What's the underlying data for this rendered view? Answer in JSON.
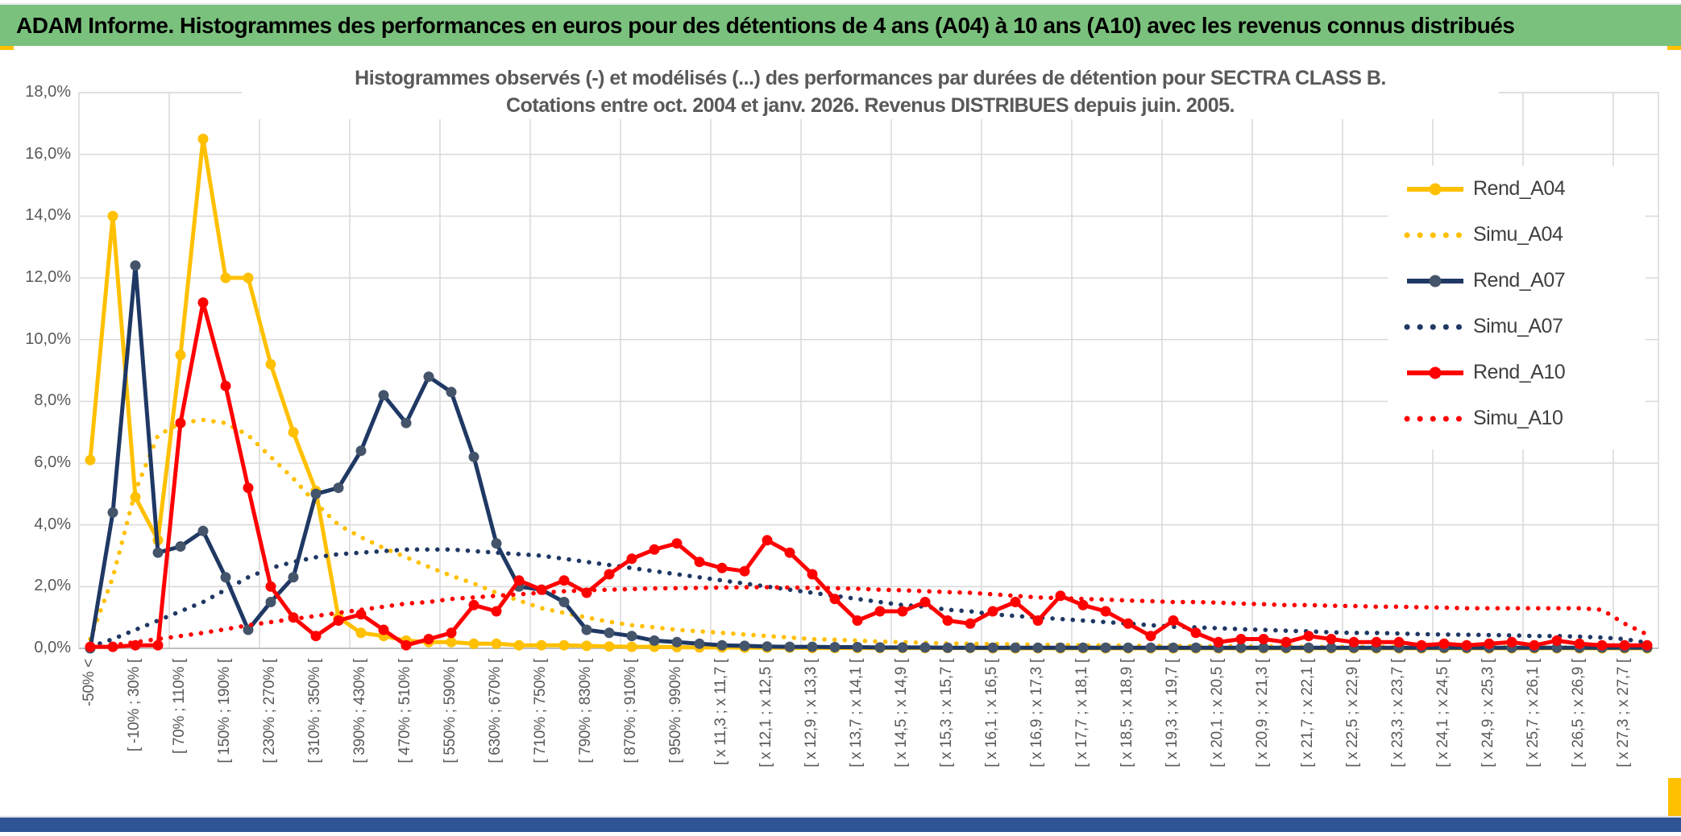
{
  "header": {
    "title": "ADAM Informe. Histogrammes des performances en euros pour des détentions de 4 ans (A04) à 10 ans (A10) avec les revenus connus distribués"
  },
  "colors": {
    "header_green": "#7ac17d",
    "accent_gold": "#ffc000",
    "bottom_blue": "#2f5597",
    "grid_gray": "#d9d9d9",
    "axis_gray": "#bfbfbf",
    "text_gray": "#595959",
    "legend_text": "#404040"
  },
  "chart_data": {
    "type": "line",
    "title_line1": "Histogrammes observés (-) et modélisés (...) des performances par durées de détention pour SECTRA CLASS B.",
    "title_line2": "Cotations entre oct. 2004 et janv. 2026. Revenus DISTRIBUES depuis juin. 2005.",
    "grid": true,
    "legend_position": "right-inside",
    "ylim": [
      0,
      18
    ],
    "y_ticks": [
      "0,0%",
      "2,0%",
      "4,0%",
      "6,0%",
      "8,0%",
      "10,0%",
      "12,0%",
      "14,0%",
      "16,0%",
      "18,0%"
    ],
    "n_bins": 70,
    "x_tick_every": 2,
    "x_tick_labels": [
      "-50% <",
      "[ -10% ; 30% [",
      "[ 70% ; 110% [",
      "[ 150% ; 190% [",
      "[ 230% ; 270% [",
      "[ 310% ; 350% [",
      "[ 390% ; 430% [",
      "[ 470% ; 510% [",
      "[ 550% ; 590% [",
      "[ 630% ; 670% [",
      "[ 710% ; 750% [",
      "[ 790% ; 830% [",
      "[ 870% ; 910% [",
      "[ 950% ; 990% [",
      "[ x 11,3 ; x 11,7 [",
      "[ x 12,1 ; x 12,5 [",
      "[ x 12,9 ; x 13,3 [",
      "[ x 13,7 ; x 14,1 [",
      "[ x 14,5 ; x 14,9 [",
      "[ x 15,3 ; x 15,7 [",
      "[ x 16,1 ; x 16,5 [",
      "[ x 16,9 ; x 17,3 [",
      "[ x 17,7 ; x 18,1 [",
      "[ x 18,5 ; x 18,9 [",
      "[ x 19,3 ; x 19,7 [",
      "[ x 20,1 ; x 20,5 [",
      "[ x 20,9 ; x 21,3 [",
      "[ x 21,7 ; x 22,1 [",
      "[ x 22,5 ; x 22,9 [",
      "[ x 23,3 ; x 23,7 [",
      "[ x 24,1 ; x 24,5 [",
      "[ x 24,9 ; x 25,3 [",
      "[ x 25,7 ; x 26,1 [",
      "[ x 26,5 ; x 26,9 [",
      "[ x 27,3 ; x 27,7 ["
    ],
    "series": [
      {
        "name": "Rend_A04",
        "style": "solid",
        "color": "#FFC000",
        "marker_color": "#FFC000",
        "values": [
          6.1,
          14,
          4.9,
          3.5,
          9.5,
          16.5,
          12,
          12,
          9.2,
          7,
          5.1,
          1,
          0.5,
          0.4,
          0.25,
          0.2,
          0.2,
          0.15,
          0.15,
          0.1,
          0.1,
          0.1,
          0.08,
          0.06,
          0.05,
          0.05,
          0.04,
          0.03,
          0.03,
          0.02,
          0.02,
          0.02,
          0.01,
          0.01,
          0.01,
          0.01,
          0.01,
          0.01,
          0.01,
          0.01,
          0,
          0,
          0,
          0,
          0,
          0,
          0,
          0,
          0,
          0,
          0,
          0,
          0,
          0,
          0,
          0,
          0,
          0,
          0,
          0,
          0,
          0,
          0,
          0,
          0,
          0,
          0,
          0,
          0,
          0
        ]
      },
      {
        "name": "Simu_A04",
        "style": "dotted",
        "color": "#FFC000",
        "values": [
          0.3,
          2.3,
          5.1,
          6.9,
          7.3,
          7.4,
          7.3,
          6.9,
          6.2,
          5.5,
          4.7,
          4,
          3.6,
          3.25,
          2.95,
          2.64,
          2.35,
          2.1,
          1.8,
          1.55,
          1.3,
          1.15,
          1,
          0.86,
          0.75,
          0.68,
          0.6,
          0.55,
          0.5,
          0.45,
          0.4,
          0.35,
          0.3,
          0.28,
          0.25,
          0.22,
          0.2,
          0.18,
          0.16,
          0.15,
          0.14,
          0.13,
          0.12,
          0.11,
          0.1,
          0.1,
          0.09,
          0.08,
          0.08,
          0.07,
          0.07,
          0.06,
          0.06,
          0.06,
          0.05,
          0.05,
          0.05,
          0.05,
          0.05,
          0.04,
          0.04,
          0.04,
          0.04,
          0.04,
          0.03,
          0.03,
          0.03,
          0.03,
          0.03,
          0.03
        ]
      },
      {
        "name": "Rend_A07",
        "style": "solid",
        "color": "#1F3864",
        "marker_color": "#44546A",
        "values": [
          0,
          4.4,
          12.4,
          3.1,
          3.3,
          3.8,
          2.3,
          0.6,
          1.5,
          2.3,
          5,
          5.2,
          6.4,
          8.2,
          7.3,
          8.8,
          8.3,
          6.2,
          3.4,
          2,
          1.9,
          1.5,
          0.6,
          0.5,
          0.4,
          0.25,
          0.2,
          0.15,
          0.1,
          0.08,
          0.06,
          0.05,
          0.05,
          0.04,
          0.04,
          0.03,
          0.03,
          0.03,
          0.02,
          0.02,
          0.02,
          0.02,
          0.02,
          0.02,
          0.02,
          0.02,
          0.02,
          0.02,
          0.02,
          0.02,
          0.02,
          0.02,
          0.02,
          0.02,
          0.02,
          0.02,
          0.02,
          0.02,
          0.02,
          0.02,
          0.02,
          0.02,
          0.02,
          0.02,
          0.02,
          0.02,
          0.02,
          0.02,
          0.02,
          0.02
        ]
      },
      {
        "name": "Simu_A07",
        "style": "dotted",
        "color": "#1F3864",
        "values": [
          0.05,
          0.3,
          0.6,
          0.9,
          1.2,
          1.5,
          1.9,
          2.3,
          2.6,
          2.8,
          2.95,
          3.05,
          3.1,
          3.15,
          3.2,
          3.2,
          3.2,
          3.15,
          3.1,
          3.05,
          3,
          2.9,
          2.8,
          2.7,
          2.6,
          2.5,
          2.4,
          2.3,
          2.2,
          2.1,
          2,
          1.9,
          1.8,
          1.7,
          1.6,
          1.5,
          1.4,
          1.35,
          1.25,
          1.2,
          1.1,
          1.05,
          1,
          0.95,
          0.9,
          0.85,
          0.8,
          0.75,
          0.7,
          0.68,
          0.65,
          0.62,
          0.6,
          0.57,
          0.55,
          0.52,
          0.5,
          0.5,
          0.48,
          0.46,
          0.45,
          0.44,
          0.43,
          0.42,
          0.4,
          0.4,
          0.38,
          0.35,
          0.3,
          0.18
        ]
      },
      {
        "name": "Rend_A10",
        "style": "solid",
        "color": "#FF0000",
        "marker_color": "#FF0000",
        "values": [
          0.05,
          0.05,
          0.1,
          0.1,
          7.3,
          11.2,
          8.5,
          5.2,
          2,
          1,
          0.4,
          0.9,
          1.1,
          0.6,
          0.1,
          0.3,
          0.5,
          1.4,
          1.2,
          2.2,
          1.9,
          2.2,
          1.8,
          2.4,
          2.9,
          3.2,
          3.4,
          2.8,
          2.6,
          2.5,
          3.5,
          3.1,
          2.4,
          1.6,
          0.9,
          1.2,
          1.2,
          1.5,
          0.9,
          0.8,
          1.2,
          1.5,
          0.9,
          1.7,
          1.4,
          1.2,
          0.8,
          0.4,
          0.9,
          0.5,
          0.2,
          0.3,
          0.3,
          0.2,
          0.4,
          0.3,
          0.2,
          0.2,
          0.2,
          0.1,
          0.15,
          0.1,
          0.15,
          0.2,
          0.1,
          0.25,
          0.15,
          0.1,
          0.1,
          0.1
        ]
      },
      {
        "name": "Simu_A10",
        "style": "dotted",
        "color": "#FF0000",
        "values": [
          0.02,
          0.1,
          0.2,
          0.3,
          0.4,
          0.5,
          0.62,
          0.75,
          0.85,
          0.95,
          1.05,
          1.15,
          1.25,
          1.35,
          1.45,
          1.5,
          1.6,
          1.65,
          1.7,
          1.75,
          1.8,
          1.85,
          1.88,
          1.9,
          1.92,
          1.94,
          1.95,
          1.96,
          1.97,
          1.98,
          1.98,
          1.97,
          1.96,
          1.95,
          1.93,
          1.9,
          1.88,
          1.85,
          1.82,
          1.8,
          1.75,
          1.7,
          1.65,
          1.63,
          1.6,
          1.58,
          1.55,
          1.53,
          1.5,
          1.5,
          1.48,
          1.45,
          1.43,
          1.4,
          1.4,
          1.38,
          1.37,
          1.35,
          1.35,
          1.33,
          1.32,
          1.3,
          1.3,
          1.3,
          1.3,
          1.3,
          1.3,
          1.25,
          0.8,
          0.45
        ]
      }
    ]
  }
}
